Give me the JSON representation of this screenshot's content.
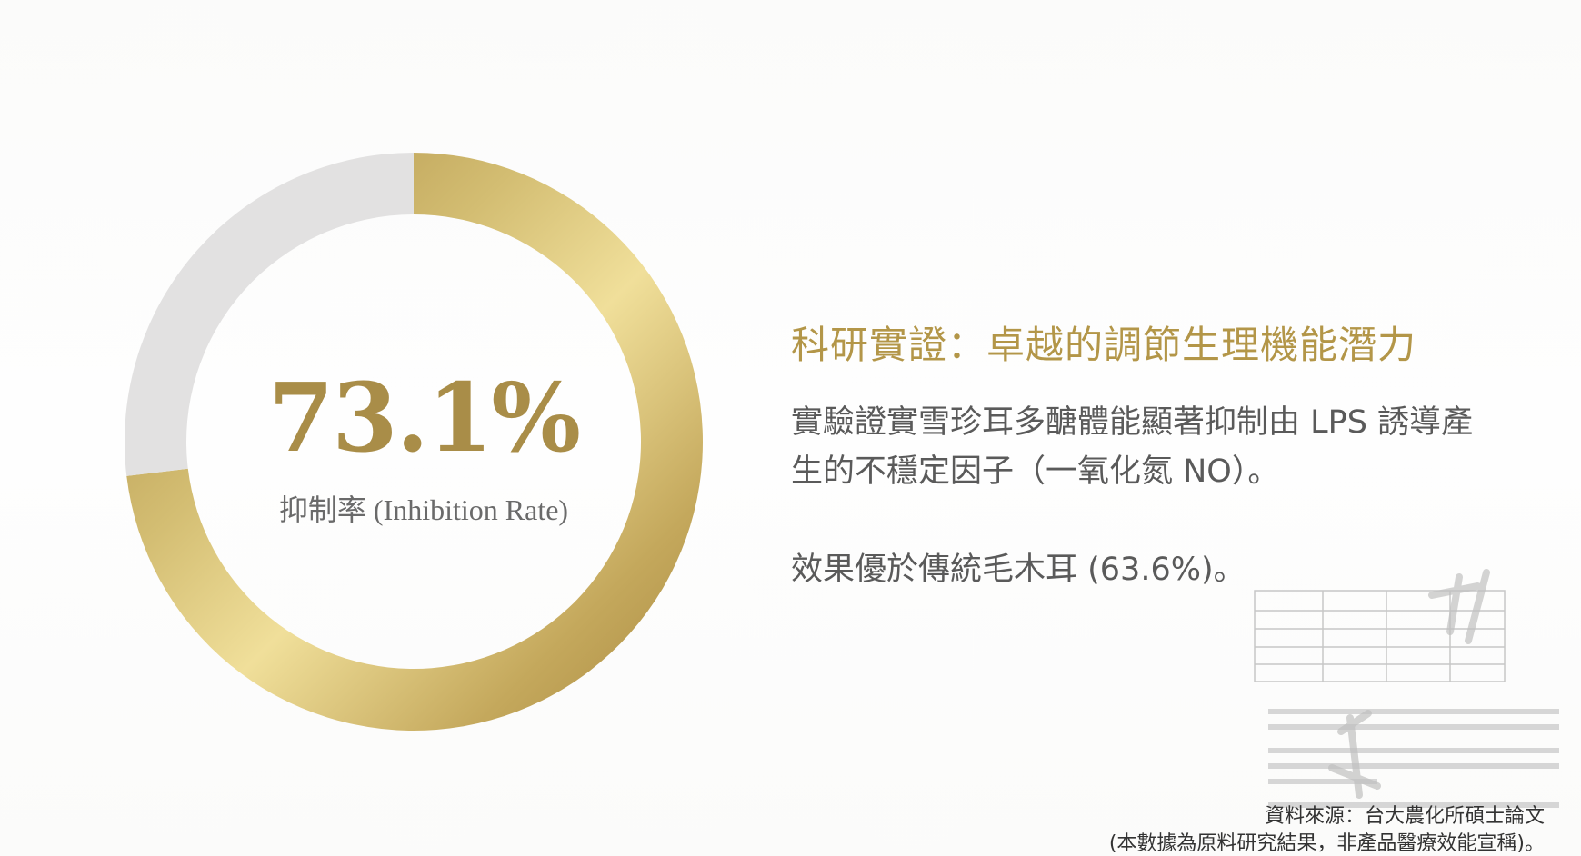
{
  "colors": {
    "gold_dark": "#a8883f",
    "gold_light": "#f0df9a",
    "remainder": "#e2e1e1",
    "title": "#b39648",
    "text": "#5a5a5a"
  },
  "chart_data": {
    "type": "pie",
    "variant": "donut",
    "categories": [
      "抑制率 (Inhibition Rate)",
      "remainder"
    ],
    "values": [
      73.1,
      26.9
    ],
    "unit": "%",
    "center_value": "73.1%",
    "center_label": "抑制率 (Inhibition Rate)"
  },
  "content": {
    "title": "科研實證：卓越的調節生理機能潛力",
    "paragraph1": "實驗證實雪珍耳多醣體能顯著抑制由 LPS 誘導產生的不穩定因子（一氧化氮 NO）。",
    "paragraph2": "效果優於傳統毛木耳 (63.6%)。",
    "source": "資料來源：台大農化所碩士論文",
    "disclaimer": "(本數據為原料研究結果，非產品醫療效能宣稱)。"
  }
}
